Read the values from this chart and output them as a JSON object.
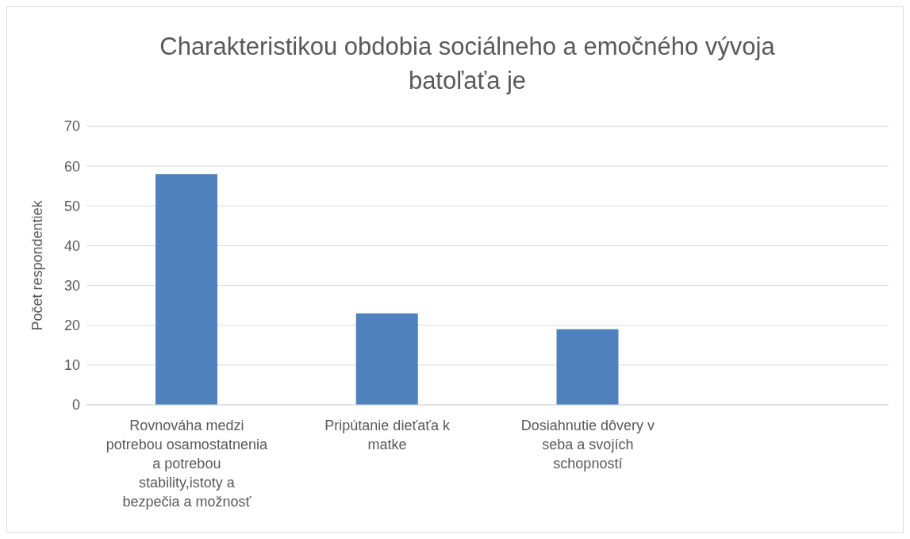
{
  "chart_data": {
    "type": "bar",
    "title": "Charakteristikou obdobia sociálneho a emočného vývoja batoľaťa je",
    "ylabel": "Počet respondentiek",
    "categories": [
      "Rovnováha medzi potrebou osamostatnenia a potrebou stability,istoty a bezpečia a možnosť",
      "Pripútanie dieťaťa k matke",
      "Dosiahnutie dôvery v seba a svojích schopností",
      null
    ],
    "values": [
      58,
      23,
      19,
      null
    ],
    "color": "#4f81bd",
    "ylim": [
      0,
      70
    ],
    "yticks": [
      0,
      10,
      20,
      30,
      40,
      50,
      60,
      70
    ],
    "grid": "y"
  }
}
